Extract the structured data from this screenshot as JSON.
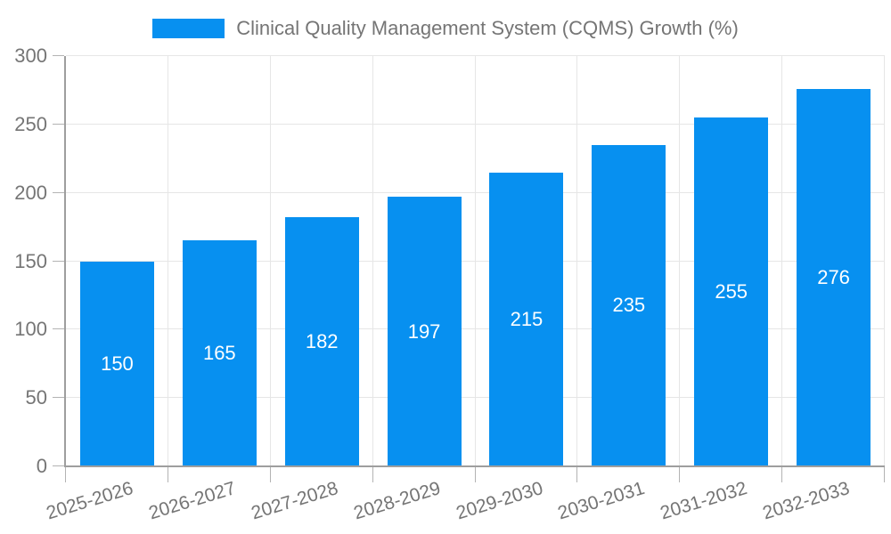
{
  "legend": {
    "label": "Clinical Quality Management System (CQMS) Growth (%)"
  },
  "chart_data": {
    "type": "bar",
    "title": "Clinical Quality Management System (CQMS) Growth (%)",
    "categories": [
      "2025-2026",
      "2026-2027",
      "2027-2028",
      "2028-2029",
      "2029-2030",
      "2030-2031",
      "2031-2032",
      "2032-2033"
    ],
    "values": [
      150,
      165,
      182,
      197,
      215,
      235,
      255,
      276
    ],
    "xlabel": "",
    "ylabel": "",
    "ylim": [
      0,
      300
    ],
    "yticks": [
      0,
      50,
      100,
      150,
      200,
      250,
      300
    ],
    "grid": true,
    "legend_position": "top-center",
    "value_labels": "inside-center",
    "xlabel_rotation_deg": -17
  },
  "colors": {
    "bar": "#0790f0",
    "grid": "#e6e6e6",
    "axis": "#9e9e9e",
    "tick": "#b3b3b3",
    "axis_label": "#757575",
    "value_label": "#ffffff",
    "background": "#ffffff"
  }
}
